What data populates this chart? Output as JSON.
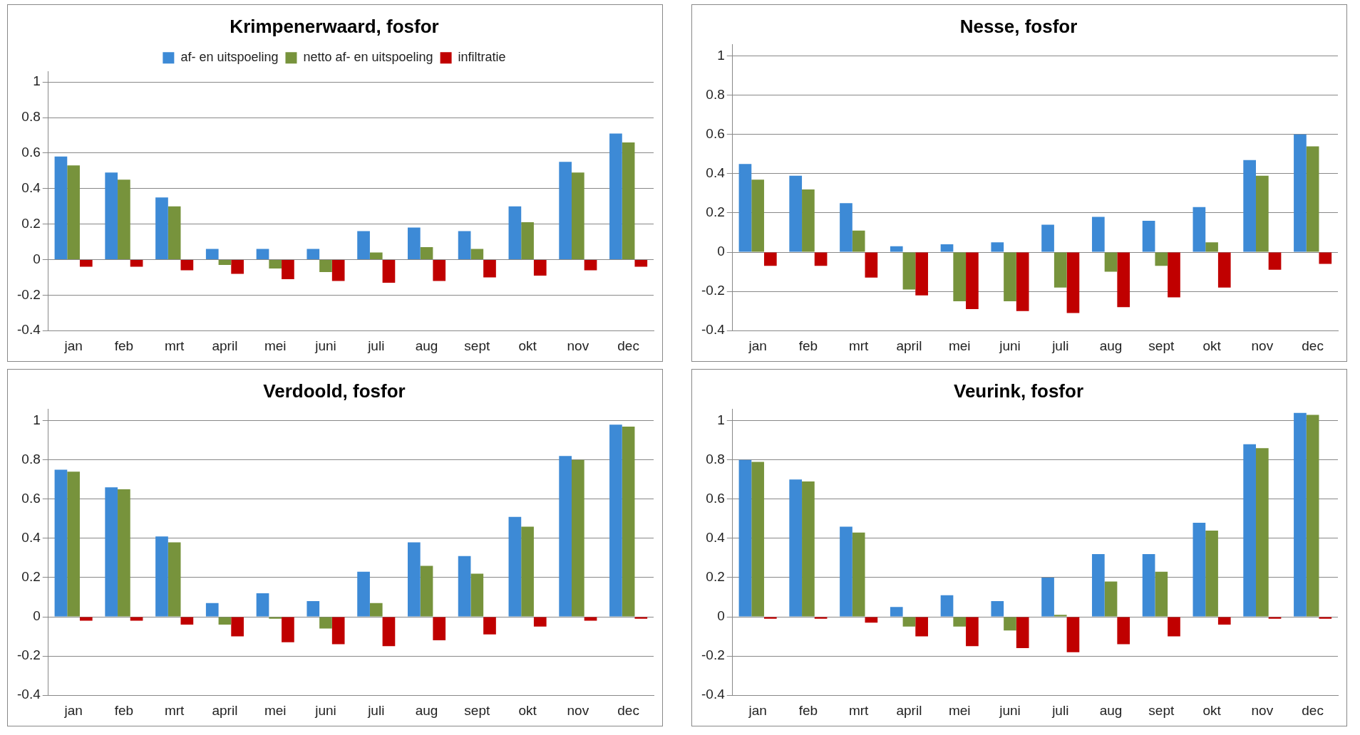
{
  "chart_data": [
    {
      "type": "bar",
      "title": "Krimpenerwaard, fosfor",
      "categories": [
        "jan",
        "feb",
        "mrt",
        "april",
        "mei",
        "juni",
        "juli",
        "aug",
        "sept",
        "okt",
        "nov",
        "dec"
      ],
      "ylim": [
        -0.4,
        1.06
      ],
      "yticks": [
        -0.4,
        -0.2,
        0,
        0.2,
        0.4,
        0.6,
        0.8,
        1
      ],
      "grid": "y",
      "legend": "top",
      "series": [
        {
          "name": "af- en uitspoeling",
          "color": "#3d8ad6",
          "values": [
            0.58,
            0.49,
            0.35,
            0.06,
            0.06,
            0.06,
            0.16,
            0.18,
            0.16,
            0.3,
            0.55,
            0.71
          ]
        },
        {
          "name": "netto af- en uitspoeling",
          "color": "#77933c",
          "values": [
            0.53,
            0.45,
            0.3,
            -0.03,
            -0.05,
            -0.07,
            0.04,
            0.07,
            0.06,
            0.21,
            0.49,
            0.66
          ]
        },
        {
          "name": "infiltratie",
          "color": "#c00000",
          "values": [
            -0.04,
            -0.04,
            -0.06,
            -0.08,
            -0.11,
            -0.12,
            -0.13,
            -0.12,
            -0.1,
            -0.09,
            -0.06,
            -0.04
          ]
        }
      ]
    },
    {
      "type": "bar",
      "title": "Nesse, fosfor",
      "categories": [
        "jan",
        "feb",
        "mrt",
        "april",
        "mei",
        "juni",
        "juli",
        "aug",
        "sept",
        "okt",
        "nov",
        "dec"
      ],
      "ylim": [
        -0.4,
        1.06
      ],
      "yticks": [
        -0.4,
        -0.2,
        0,
        0.2,
        0.4,
        0.6,
        0.8,
        1
      ],
      "grid": "y",
      "series": [
        {
          "color": "#3d8ad6",
          "values": [
            0.45,
            0.39,
            0.25,
            0.03,
            0.04,
            0.05,
            0.14,
            0.18,
            0.16,
            0.23,
            0.47,
            0.6
          ]
        },
        {
          "color": "#77933c",
          "values": [
            0.37,
            0.32,
            0.11,
            -0.19,
            -0.25,
            -0.25,
            -0.18,
            -0.1,
            -0.07,
            0.05,
            0.39,
            0.54
          ]
        },
        {
          "color": "#c00000",
          "values": [
            -0.07,
            -0.07,
            -0.13,
            -0.22,
            -0.29,
            -0.3,
            -0.31,
            -0.28,
            -0.23,
            -0.18,
            -0.09,
            -0.06
          ]
        }
      ]
    },
    {
      "type": "bar",
      "title": "Verdoold, fosfor",
      "categories": [
        "jan",
        "feb",
        "mrt",
        "april",
        "mei",
        "juni",
        "juli",
        "aug",
        "sept",
        "okt",
        "nov",
        "dec"
      ],
      "ylim": [
        -0.4,
        1.06
      ],
      "yticks": [
        -0.4,
        -0.2,
        0,
        0.2,
        0.4,
        0.6,
        0.8,
        1
      ],
      "grid": "y",
      "series": [
        {
          "color": "#3d8ad6",
          "values": [
            0.75,
            0.66,
            0.41,
            0.07,
            0.12,
            0.08,
            0.23,
            0.38,
            0.31,
            0.51,
            0.82,
            0.98
          ]
        },
        {
          "color": "#77933c",
          "values": [
            0.74,
            0.65,
            0.38,
            -0.04,
            -0.01,
            -0.06,
            0.07,
            0.26,
            0.22,
            0.46,
            0.8,
            0.97
          ]
        },
        {
          "color": "#c00000",
          "values": [
            -0.02,
            -0.02,
            -0.04,
            -0.1,
            -0.13,
            -0.14,
            -0.15,
            -0.12,
            -0.09,
            -0.05,
            -0.02,
            -0.01
          ]
        }
      ]
    },
    {
      "type": "bar",
      "title": "Veurink, fosfor",
      "categories": [
        "jan",
        "feb",
        "mrt",
        "april",
        "mei",
        "juni",
        "juli",
        "aug",
        "sept",
        "okt",
        "nov",
        "dec"
      ],
      "ylim": [
        -0.4,
        1.06
      ],
      "yticks": [
        -0.4,
        -0.2,
        0,
        0.2,
        0.4,
        0.6,
        0.8,
        1
      ],
      "grid": "y",
      "series": [
        {
          "color": "#3d8ad6",
          "values": [
            0.8,
            0.7,
            0.46,
            0.05,
            0.11,
            0.08,
            0.2,
            0.32,
            0.32,
            0.48,
            0.88,
            1.04
          ]
        },
        {
          "color": "#77933c",
          "values": [
            0.79,
            0.69,
            0.43,
            -0.05,
            -0.05,
            -0.07,
            0.01,
            0.18,
            0.23,
            0.44,
            0.86,
            1.03
          ]
        },
        {
          "color": "#c00000",
          "values": [
            -0.01,
            -0.01,
            -0.03,
            -0.1,
            -0.15,
            -0.16,
            -0.18,
            -0.14,
            -0.1,
            -0.04,
            -0.01,
            -0.01
          ]
        }
      ]
    }
  ]
}
